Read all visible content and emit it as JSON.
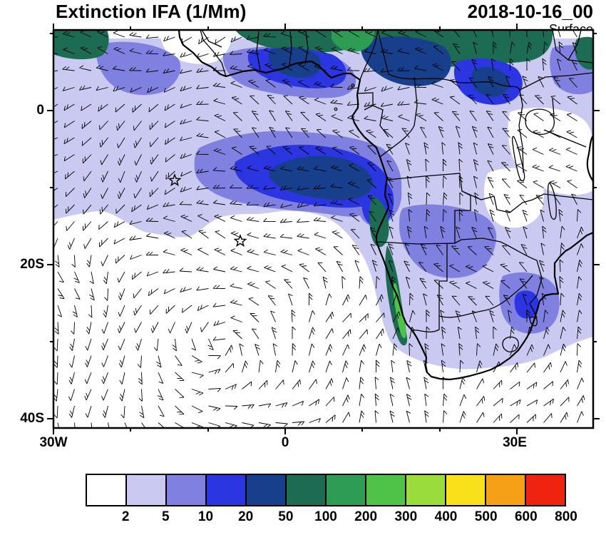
{
  "header": {
    "title": "Extinction IFA (1/Mm)",
    "date": "2018-10-16_00",
    "level": "Surface"
  },
  "axes": {
    "y_ticks": [
      "0",
      "20S",
      "40S"
    ],
    "x_ticks": [
      "30W",
      "0",
      "30E"
    ]
  },
  "colorbar": {
    "labels": [
      "2",
      "5",
      "10",
      "20",
      "50",
      "100",
      "200",
      "300",
      "400",
      "500",
      "600",
      "800"
    ],
    "colors": [
      "#FFFFFF",
      "#C9C9F2",
      "#8080E0",
      "#2B35E0",
      "#173F8C",
      "#1E6B54",
      "#2E9C54",
      "#4FC248",
      "#9ADC3C",
      "#F8E01A",
      "#F6A018",
      "#EF2410"
    ]
  },
  "chart_data": {
    "type": "heatmap",
    "title": "Extinction IFA (1/Mm)",
    "datetime": "2018-10-16_00",
    "level": "Surface",
    "variable": "Extinction",
    "units": "1/Mm",
    "extent": {
      "lon_min": -30,
      "lon_max": 40,
      "lat_min": -41.3,
      "lat_max": 10.5
    },
    "contour_levels": [
      2,
      5,
      10,
      20,
      50,
      100,
      200,
      300,
      400,
      500,
      600,
      800
    ],
    "palette": [
      "#FFFFFF",
      "#C9C9F2",
      "#8080E0",
      "#2B35E0",
      "#173F8C",
      "#1E6B54",
      "#2E9C54",
      "#4FC248",
      "#9ADC3C",
      "#F8E01A",
      "#F6A018",
      "#EF2410"
    ],
    "overlay": "surface wind barbs",
    "markers": [
      {
        "shape": "star",
        "lon": -14.3,
        "lat": -9.1
      },
      {
        "shape": "star",
        "lon": -5.8,
        "lat": -16.9
      }
    ],
    "features": [
      "Broad 2-5 1/Mm haze over tropical Atlantic and central/southern Africa",
      "10-50 1/Mm band stretching from Gulf of Guinea into the Congo basin",
      "50-100 1/Mm dark cores near 0-5S offshore and over Nigeria/Cameroon",
      "Narrow 50-200 1/Mm strip hugging the Angolan/Namibian coastline",
      "Clean air (<2 1/Mm) over the subtropical South Atlantic and parts of East Africa"
    ]
  }
}
